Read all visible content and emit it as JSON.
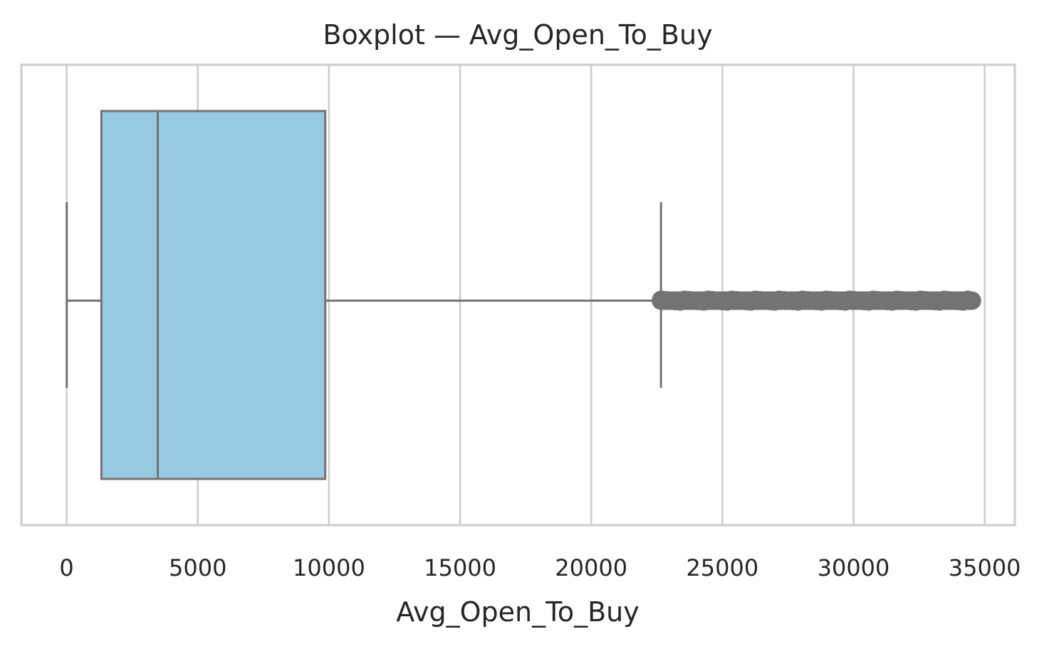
{
  "chart_data": {
    "type": "boxplot",
    "title": "Boxplot — Avg_Open_To_Buy",
    "xlabel": "Avg_Open_To_Buy",
    "ylabel": "",
    "orientation": "horizontal",
    "xlim": [
      -1727,
      36150
    ],
    "x_ticks": [
      0,
      5000,
      10000,
      15000,
      20000,
      25000,
      30000,
      35000
    ],
    "x_tick_labels": [
      "0",
      "5000",
      "10000",
      "15000",
      "20000",
      "25000",
      "30000",
      "35000"
    ],
    "grid": true,
    "box": {
      "min": 3,
      "q1": 1324,
      "median": 3474,
      "q3": 9859,
      "whisker_high": 22660,
      "outlier_start": 22660,
      "outlier_end": 34516
    },
    "colors": {
      "box_fill": "#97c9e0",
      "lines": "#737373",
      "grid": "#cccccc",
      "text": "#262626"
    }
  }
}
